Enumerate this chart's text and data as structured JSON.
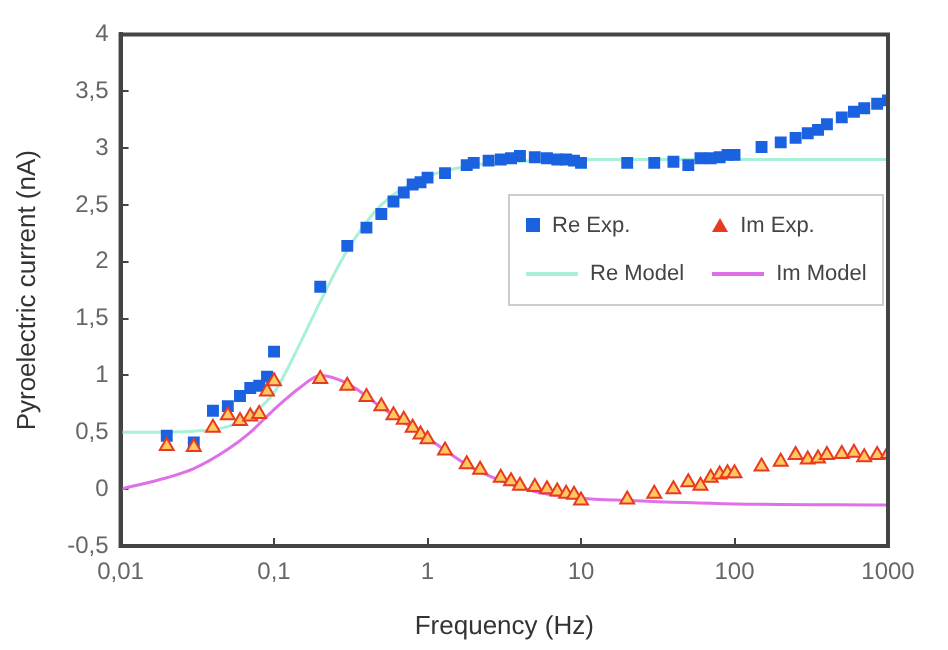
{
  "chart_data": {
    "type": "scatter",
    "xlabel": "Frequency (Hz)",
    "ylabel": "Pyroelectric current (nA)",
    "log": "x",
    "xlim": [
      0.01,
      1000
    ],
    "ylim": [
      -0.5,
      4
    ],
    "xticks": [
      {
        "value": 0.01,
        "label": "0,01"
      },
      {
        "value": 0.1,
        "label": "0,1"
      },
      1,
      10,
      100,
      1000
    ],
    "yticks": [
      {
        "value": -0.5,
        "label": "-0,5"
      },
      0,
      {
        "value": 0.5,
        "label": "0,5"
      },
      1,
      {
        "value": 1.5,
        "label": "1,5"
      },
      2,
      {
        "value": 2.5,
        "label": "2,5"
      },
      3,
      {
        "value": 3.5,
        "label": "3,5"
      },
      4
    ],
    "grid": false,
    "legend": "right",
    "series": [
      {
        "name": "Re Exp.",
        "marker": "square",
        "color": "#1a62e0",
        "x": [
          0.02,
          0.03,
          0.04,
          0.05,
          0.06,
          0.07,
          0.08,
          0.09,
          0.1,
          0.2,
          0.3,
          0.4,
          0.5,
          0.6,
          0.7,
          0.8,
          0.9,
          1,
          1.3,
          1.8,
          2,
          2.5,
          3,
          3.5,
          4,
          5,
          6,
          7,
          8,
          9,
          10,
          20,
          30,
          40,
          50,
          60,
          70,
          80,
          90,
          100,
          150,
          200,
          250,
          300,
          350,
          400,
          500,
          600,
          700,
          850,
          1000
        ],
        "values": [
          0.47,
          0.41,
          0.69,
          0.73,
          0.82,
          0.89,
          0.91,
          0.99,
          1.21,
          1.78,
          2.14,
          2.3,
          2.42,
          2.53,
          2.61,
          2.68,
          2.7,
          2.74,
          2.78,
          2.85,
          2.87,
          2.89,
          2.9,
          2.91,
          2.93,
          2.92,
          2.91,
          2.9,
          2.9,
          2.89,
          2.87,
          2.87,
          2.87,
          2.88,
          2.85,
          2.91,
          2.91,
          2.92,
          2.94,
          2.94,
          3.01,
          3.05,
          3.09,
          3.13,
          3.16,
          3.21,
          3.27,
          3.32,
          3.35,
          3.39,
          3.42
        ]
      },
      {
        "name": "Im Exp.",
        "marker": "triangle",
        "color": "#e83a20",
        "x": [
          0.02,
          0.03,
          0.04,
          0.05,
          0.06,
          0.07,
          0.08,
          0.09,
          0.1,
          0.2,
          0.3,
          0.4,
          0.5,
          0.6,
          0.7,
          0.8,
          0.9,
          1,
          1.3,
          1.8,
          2.2,
          3,
          3.5,
          4,
          5,
          6,
          7,
          8,
          9,
          10,
          20,
          30,
          40,
          50,
          60,
          70,
          80,
          90,
          100,
          150,
          200,
          250,
          300,
          350,
          400,
          500,
          600,
          700,
          850,
          1000
        ],
        "values": [
          0.38,
          0.37,
          0.54,
          0.65,
          0.6,
          0.64,
          0.66,
          0.86,
          0.95,
          0.97,
          0.91,
          0.81,
          0.73,
          0.65,
          0.61,
          0.54,
          0.48,
          0.44,
          0.34,
          0.22,
          0.17,
          0.1,
          0.07,
          0.03,
          0.02,
          0,
          -0.02,
          -0.04,
          -0.05,
          -0.1,
          -0.09,
          -0.04,
          0,
          0.06,
          0.03,
          0.1,
          0.13,
          0.14,
          0.14,
          0.2,
          0.24,
          0.3,
          0.26,
          0.27,
          0.3,
          0.31,
          0.32,
          0.28,
          0.3,
          0.31
        ]
      },
      {
        "name": "Re Model",
        "type": "line",
        "marker": "none",
        "color": "#a8f0d8",
        "x": [
          0.01,
          0.03,
          0.05,
          0.07,
          0.1,
          0.15,
          0.2,
          0.3,
          0.5,
          1,
          2,
          5,
          10,
          100,
          1000
        ],
        "values": [
          0.5,
          0.51,
          0.55,
          0.65,
          0.85,
          1.3,
          1.65,
          2.1,
          2.5,
          2.75,
          2.85,
          2.89,
          2.9,
          2.9,
          2.9
        ]
      },
      {
        "name": "Im Model",
        "type": "line",
        "marker": "none",
        "color": "#e070e8",
        "x": [
          0.01,
          0.02,
          0.03,
          0.05,
          0.07,
          0.1,
          0.15,
          0.2,
          0.3,
          0.5,
          1,
          2,
          5,
          10,
          20,
          100,
          1000
        ],
        "values": [
          0,
          0.1,
          0.18,
          0.35,
          0.5,
          0.7,
          0.9,
          1,
          0.93,
          0.72,
          0.45,
          0.18,
          -0.02,
          -0.08,
          -0.1,
          -0.13,
          -0.14
        ]
      }
    ]
  }
}
